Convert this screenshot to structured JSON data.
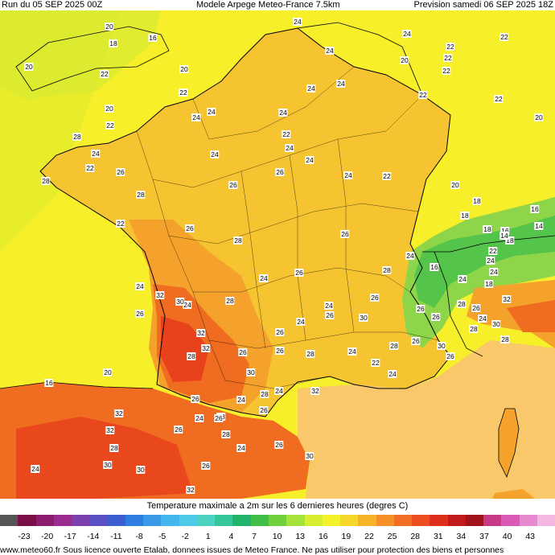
{
  "header": {
    "run": "Run du 05 SEP 2025 00Z",
    "model": "Modele Arpege Meteo-France 7.5km",
    "forecast": "Prevision samedi 06 SEP 2025 18Z"
  },
  "legend": {
    "title": "Temperature maximale a 2m sur les 6 dernieres heures (degres C)",
    "ticks": [
      "-23",
      "-20",
      "-17",
      "-14",
      "-11",
      "-8",
      "-5",
      "-2",
      "1",
      "4",
      "7",
      "10",
      "13",
      "16",
      "19",
      "22",
      "25",
      "28",
      "31",
      "34",
      "37",
      "40",
      "43"
    ],
    "colors": [
      "#555555",
      "#7a0f48",
      "#8c1d6e",
      "#9a2c8f",
      "#7c3fae",
      "#5a4fc4",
      "#3b5fd0",
      "#2d7ee0",
      "#3a9ae8",
      "#43b6ef",
      "#4fcbe8",
      "#4dd3c2",
      "#33c79a",
      "#22b46a",
      "#3fbf48",
      "#6fd23c",
      "#a5e23a",
      "#d7ee30",
      "#f4f32a",
      "#f7d62a",
      "#f7b42a",
      "#f59128",
      "#f26e24",
      "#ec4e1f",
      "#dd2f1c",
      "#c21a1a",
      "#a0131a",
      "#c73a86",
      "#d85ab6",
      "#e789cf",
      "#f2b8e2"
    ]
  },
  "footer": "www.meteo60.fr Sous licence ouverte Etalab, donnees issues de Meteo France. Ne pas utiliser pour protection des biens et personnes",
  "map": {
    "colors": {
      "sea": "#f6ef2a",
      "sea_atlantic": "#e9ee2c",
      "land": "#f6c431",
      "warm": "#f4a22c",
      "hot": "#ef6c21",
      "very_hot": "#e8421c",
      "alps_cool": "#8ed54a",
      "mountain_green": "#54c44a",
      "med_sea": "#f9c86a",
      "border": "#000000"
    },
    "labels": [
      "20",
      "18",
      "16",
      "20",
      "20",
      "22",
      "24",
      "24",
      "24",
      "22",
      "22",
      "22",
      "24",
      "24",
      "22",
      "20",
      "22",
      "20",
      "22",
      "24",
      "24",
      "24",
      "24",
      "22",
      "24",
      "26",
      "24",
      "26",
      "28",
      "24",
      "22",
      "20",
      "22",
      "24",
      "26",
      "26",
      "28",
      "26",
      "24",
      "24",
      "26",
      "28",
      "24",
      "26",
      "22",
      "20",
      "18",
      "16",
      "18",
      "18",
      "14",
      "16",
      "18",
      "14",
      "16",
      "24",
      "22",
      "24",
      "24",
      "24",
      "32",
      "30",
      "26",
      "26",
      "28",
      "24",
      "26",
      "30",
      "32",
      "32",
      "28",
      "26",
      "30",
      "28",
      "24",
      "24",
      "26",
      "26",
      "28",
      "22",
      "28",
      "22",
      "18",
      "24",
      "26",
      "26",
      "28",
      "26",
      "28",
      "24",
      "30",
      "28",
      "32",
      "30",
      "26",
      "26",
      "32",
      "32",
      "28",
      "30",
      "26",
      "24",
      "26",
      "28",
      "24",
      "26",
      "30",
      "32",
      "28",
      "24",
      "22",
      "24",
      "26",
      "28",
      "26",
      "24",
      "32",
      "30",
      "28",
      "20",
      "16",
      "26"
    ]
  }
}
